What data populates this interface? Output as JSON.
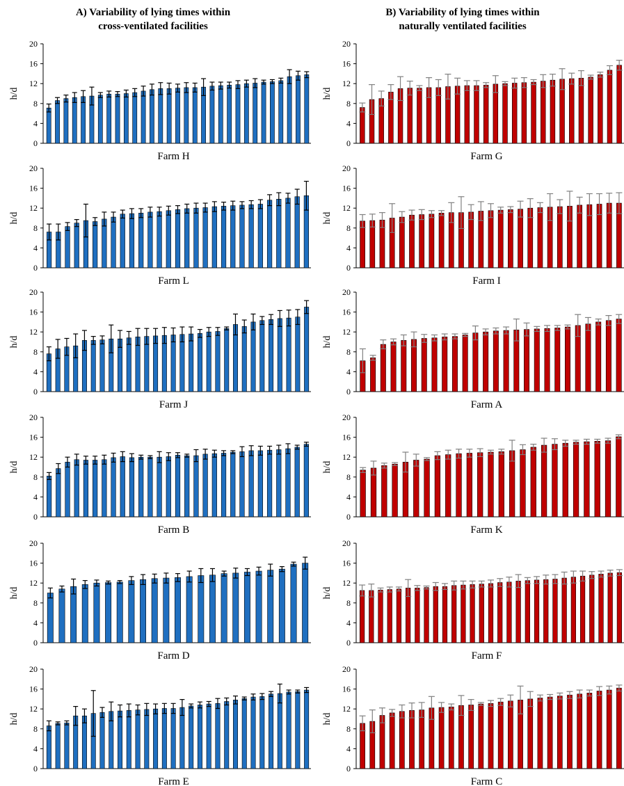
{
  "column_titles": {
    "left": {
      "line1": "A) Variability  of lying times within",
      "line2": "cross-ventilated facilities"
    },
    "right": {
      "line1": "B) Variability  of lying times within",
      "line2": "naturally ventilated facilities"
    }
  },
  "colors": {
    "cross": "#1f6fc0",
    "natural": "#c00000"
  },
  "chart_data": [
    {
      "type": "bar",
      "title": "",
      "xlabel": "Farm H",
      "ylabel": "h/d",
      "ylim": [
        0,
        20
      ],
      "yticks": [
        0,
        4,
        8,
        12,
        16,
        20
      ],
      "series": [
        {
          "name": "",
          "color": "#1f6fc0",
          "values": [
            7.1,
            8.6,
            9.0,
            9.2,
            9.4,
            9.5,
            9.7,
            9.9,
            9.9,
            10.0,
            10.2,
            10.5,
            10.8,
            11.0,
            11.0,
            11.1,
            11.2,
            11.2,
            11.3,
            11.5,
            11.6,
            11.7,
            11.8,
            12.0,
            12.1,
            12.3,
            12.4,
            12.6,
            13.4,
            13.6,
            13.8
          ],
          "errors": [
            0.8,
            0.6,
            0.7,
            1.0,
            1.2,
            1.8,
            0.5,
            0.6,
            0.5,
            0.7,
            0.8,
            1.0,
            1.1,
            1.2,
            1.1,
            0.8,
            1.0,
            0.9,
            1.7,
            0.8,
            0.7,
            0.6,
            0.8,
            0.7,
            0.9,
            0.4,
            0.4,
            0.5,
            1.4,
            0.9,
            0.6
          ]
        }
      ]
    },
    {
      "type": "bar",
      "title": "",
      "xlabel": "Farm L",
      "ylabel": "h/d",
      "ylim": [
        0,
        20
      ],
      "yticks": [
        0,
        4,
        8,
        12,
        16,
        20
      ],
      "series": [
        {
          "name": "",
          "color": "#1f6fc0",
          "values": [
            7.2,
            7.2,
            8.3,
            9.0,
            9.5,
            9.3,
            9.8,
            10.2,
            10.8,
            10.9,
            11.0,
            11.2,
            11.3,
            11.5,
            11.7,
            11.9,
            12.0,
            12.1,
            12.3,
            12.4,
            12.5,
            12.6,
            12.7,
            12.8,
            13.6,
            13.8,
            14.0,
            14.3,
            14.5
          ],
          "errors": [
            1.6,
            1.6,
            0.8,
            0.7,
            3.3,
            0.8,
            1.4,
            1.0,
            0.8,
            1.0,
            0.9,
            1.0,
            0.9,
            0.9,
            0.8,
            0.9,
            1.0,
            0.9,
            1.0,
            0.8,
            0.9,
            0.7,
            0.8,
            0.9,
            1.1,
            1.3,
            1.0,
            1.5,
            2.9
          ]
        }
      ]
    },
    {
      "type": "bar",
      "title": "",
      "xlabel": "Farm J",
      "ylabel": "h/d",
      "ylim": [
        0,
        20
      ],
      "yticks": [
        0,
        4,
        8,
        12,
        16,
        20
      ],
      "series": [
        {
          "name": "",
          "color": "#1f6fc0",
          "values": [
            7.6,
            8.6,
            9.0,
            9.2,
            10.3,
            10.3,
            10.4,
            10.6,
            10.6,
            10.8,
            11.0,
            11.1,
            11.2,
            11.3,
            11.4,
            11.5,
            11.6,
            11.7,
            12.0,
            12.1,
            12.7,
            13.5,
            13.1,
            14.0,
            14.3,
            14.5,
            14.7,
            14.8,
            15.0,
            17.0
          ],
          "errors": [
            1.4,
            1.9,
            1.7,
            2.4,
            2.0,
            0.8,
            0.8,
            2.8,
            1.7,
            1.3,
            1.7,
            1.6,
            1.5,
            1.6,
            1.4,
            1.5,
            1.4,
            0.8,
            0.9,
            0.8,
            0.3,
            2.1,
            1.3,
            1.6,
            0.8,
            1.0,
            1.6,
            1.6,
            1.5,
            1.3
          ]
        }
      ]
    },
    {
      "type": "bar",
      "title": "",
      "xlabel": "Farm B",
      "ylabel": "h/d",
      "ylim": [
        0,
        20
      ],
      "yticks": [
        0,
        4,
        8,
        12,
        16,
        20
      ],
      "series": [
        {
          "name": "",
          "color": "#1f6fc0",
          "values": [
            8.2,
            9.7,
            11.0,
            11.5,
            11.4,
            11.4,
            11.5,
            11.9,
            12.1,
            11.9,
            12.0,
            12.0,
            12.0,
            12.1,
            12.4,
            12.3,
            12.3,
            12.6,
            12.7,
            12.8,
            13.0,
            13.1,
            13.3,
            13.3,
            13.4,
            13.5,
            13.7,
            14.0,
            14.6
          ],
          "errors": [
            0.7,
            1.0,
            1.0,
            1.1,
            0.8,
            0.8,
            0.9,
            0.9,
            1.0,
            0.8,
            0.4,
            0.3,
            1.1,
            0.8,
            0.5,
            0.3,
            1.2,
            1.0,
            0.7,
            0.5,
            0.3,
            1.0,
            1.0,
            0.9,
            0.8,
            0.9,
            1.0,
            0.4,
            0.4
          ]
        }
      ]
    },
    {
      "type": "bar",
      "title": "",
      "xlabel": "Farm D",
      "ylabel": "h/d",
      "ylim": [
        0,
        20
      ],
      "yticks": [
        0,
        4,
        8,
        12,
        16,
        20
      ],
      "series": [
        {
          "name": "",
          "color": "#1f6fc0",
          "values": [
            10.0,
            10.8,
            11.3,
            11.7,
            12.0,
            12.1,
            12.2,
            12.5,
            12.7,
            12.9,
            13.0,
            13.1,
            13.3,
            13.5,
            13.6,
            13.9,
            14.0,
            14.2,
            14.4,
            14.6,
            14.8,
            15.8,
            16.0
          ],
          "errors": [
            1.0,
            0.6,
            1.5,
            0.8,
            0.6,
            0.3,
            0.3,
            0.8,
            1.0,
            0.9,
            1.0,
            0.8,
            1.1,
            1.4,
            1.3,
            0.5,
            1.0,
            0.7,
            0.8,
            1.2,
            0.5,
            0.4,
            1.2
          ]
        }
      ]
    },
    {
      "type": "bar",
      "title": "",
      "xlabel": "Farm E",
      "ylabel": "h/d",
      "ylim": [
        0,
        20
      ],
      "yticks": [
        0,
        4,
        8,
        12,
        16,
        20
      ],
      "series": [
        {
          "name": "",
          "color": "#1f6fc0",
          "values": [
            8.6,
            9.1,
            9.2,
            10.6,
            10.6,
            11.1,
            11.3,
            11.5,
            11.6,
            11.7,
            11.8,
            11.9,
            12.0,
            12.1,
            12.1,
            12.3,
            12.6,
            12.8,
            13.0,
            13.1,
            13.5,
            13.8,
            14.1,
            14.4,
            14.5,
            15.0,
            15.1,
            15.4,
            15.5,
            15.8
          ],
          "errors": [
            1.0,
            0.3,
            0.4,
            1.9,
            1.4,
            4.6,
            1.0,
            1.9,
            1.2,
            1.3,
            1.0,
            1.2,
            1.0,
            1.0,
            1.0,
            1.6,
            0.4,
            0.6,
            0.5,
            1.0,
            0.7,
            0.8,
            0.3,
            0.6,
            0.6,
            0.5,
            1.9,
            0.4,
            0.3,
            0.5
          ]
        }
      ]
    },
    {
      "type": "bar",
      "title": "",
      "xlabel": "Farm G",
      "ylabel": "h/d",
      "ylim": [
        0,
        20
      ],
      "yticks": [
        0,
        4,
        8,
        12,
        16,
        20
      ],
      "series": [
        {
          "name": "",
          "color": "#c00000",
          "values": [
            7.2,
            8.8,
            9.0,
            10.3,
            11.0,
            11.1,
            11.1,
            11.2,
            11.2,
            11.4,
            11.5,
            11.6,
            11.6,
            11.7,
            11.9,
            12.0,
            12.1,
            12.2,
            12.3,
            12.5,
            12.7,
            12.9,
            13.0,
            13.1,
            13.3,
            13.8,
            14.7,
            15.7
          ],
          "errors": [
            0.9,
            3.0,
            1.5,
            1.5,
            2.4,
            1.4,
            0.5,
            2.0,
            1.6,
            2.5,
            1.6,
            1.0,
            1.0,
            0.5,
            1.7,
            0.4,
            1.0,
            1.0,
            0.5,
            1.3,
            1.2,
            2.1,
            1.1,
            1.5,
            0.4,
            0.5,
            0.9,
            1.0
          ]
        }
      ]
    },
    {
      "type": "bar",
      "title": "",
      "xlabel": "Farm I",
      "ylabel": "h/d",
      "ylim": [
        0,
        20
      ],
      "yticks": [
        0,
        4,
        8,
        12,
        16,
        20
      ],
      "series": [
        {
          "name": "",
          "color": "#c00000",
          "values": [
            9.4,
            9.5,
            9.6,
            10.0,
            10.2,
            10.6,
            10.7,
            10.8,
            11.0,
            11.1,
            11.1,
            11.2,
            11.4,
            11.5,
            11.6,
            11.7,
            11.8,
            12.0,
            12.1,
            12.2,
            12.3,
            12.4,
            12.6,
            12.7,
            12.8,
            13.0,
            13.0
          ],
          "errors": [
            1.3,
            1.3,
            1.5,
            2.9,
            1.1,
            1.0,
            1.0,
            0.7,
            0.5,
            2.0,
            3.2,
            1.5,
            1.9,
            1.4,
            0.6,
            0.6,
            1.6,
            1.9,
            1.0,
            2.7,
            1.4,
            3.0,
            1.6,
            2.2,
            2.1,
            2.0,
            2.1
          ]
        }
      ]
    },
    {
      "type": "bar",
      "title": "",
      "xlabel": "Farm A",
      "ylabel": "h/d",
      "ylim": [
        0,
        20
      ],
      "yticks": [
        0,
        4,
        8,
        12,
        16,
        20
      ],
      "series": [
        {
          "name": "",
          "color": "#c00000",
          "values": [
            6.2,
            6.8,
            9.5,
            10.0,
            10.3,
            10.5,
            10.7,
            10.8,
            11.0,
            11.1,
            11.4,
            11.8,
            12.0,
            12.2,
            12.3,
            12.4,
            12.5,
            12.6,
            12.7,
            12.8,
            13.0,
            13.3,
            13.6,
            14.0,
            14.3,
            14.6
          ],
          "errors": [
            2.4,
            0.5,
            0.9,
            0.6,
            1.1,
            1.5,
            0.8,
            0.6,
            0.6,
            0.5,
            0.3,
            1.4,
            0.6,
            0.6,
            0.7,
            2.2,
            1.3,
            0.5,
            0.6,
            0.5,
            0.4,
            2.2,
            1.3,
            0.6,
            1.0,
            0.9
          ]
        }
      ]
    },
    {
      "type": "bar",
      "title": "",
      "xlabel": "Farm K",
      "ylabel": "h/d",
      "ylim": [
        0,
        20
      ],
      "yticks": [
        0,
        4,
        8,
        12,
        16,
        20
      ],
      "series": [
        {
          "name": "",
          "color": "#c00000",
          "values": [
            9.4,
            9.8,
            10.3,
            10.6,
            11.0,
            11.4,
            11.6,
            12.3,
            12.5,
            12.7,
            12.8,
            12.9,
            13.0,
            13.1,
            13.3,
            13.5,
            14.0,
            14.4,
            14.6,
            14.8,
            15.0,
            15.1,
            15.2,
            15.3,
            16.1
          ],
          "errors": [
            0.5,
            1.4,
            0.5,
            0.3,
            2.0,
            1.2,
            0.3,
            0.8,
            0.9,
            0.9,
            0.8,
            0.8,
            0.4,
            0.5,
            2.1,
            1.0,
            0.6,
            1.4,
            1.1,
            0.6,
            0.4,
            0.5,
            0.4,
            0.5,
            0.4
          ]
        }
      ]
    },
    {
      "type": "bar",
      "title": "",
      "xlabel": "Farm F",
      "ylabel": "h/d",
      "ylim": [
        0,
        20
      ],
      "yticks": [
        0,
        4,
        8,
        12,
        16,
        20
      ],
      "series": [
        {
          "name": "",
          "color": "#c00000",
          "values": [
            10.5,
            10.5,
            10.6,
            10.7,
            10.8,
            11.0,
            11.0,
            11.1,
            11.3,
            11.3,
            11.5,
            11.6,
            11.7,
            11.8,
            11.9,
            12.1,
            12.2,
            12.4,
            12.5,
            12.6,
            12.7,
            12.8,
            13.0,
            13.2,
            13.4,
            13.6,
            13.8,
            14.0,
            14.1
          ],
          "errors": [
            1.1,
            1.3,
            0.4,
            0.5,
            0.4,
            1.7,
            0.5,
            0.3,
            0.8,
            0.6,
            0.9,
            0.8,
            0.7,
            0.6,
            0.7,
            0.8,
            1.0,
            1.3,
            0.6,
            0.7,
            0.9,
            0.9,
            1.2,
            1.2,
            1.0,
            0.7,
            0.6,
            0.6,
            0.6
          ]
        }
      ]
    },
    {
      "type": "bar",
      "title": "",
      "xlabel": "Farm C",
      "ylabel": "h/d",
      "ylim": [
        0,
        20
      ],
      "yticks": [
        0,
        4,
        8,
        12,
        16,
        20
      ],
      "series": [
        {
          "name": "",
          "color": "#c00000",
          "values": [
            9.1,
            9.5,
            10.7,
            11.2,
            11.5,
            11.7,
            11.8,
            12.2,
            12.3,
            12.4,
            12.7,
            12.8,
            13.0,
            13.1,
            13.4,
            13.6,
            13.8,
            14.0,
            14.2,
            14.4,
            14.6,
            14.8,
            15.0,
            15.2,
            15.6,
            15.8,
            16.2
          ],
          "errors": [
            1.5,
            2.3,
            1.5,
            0.7,
            1.3,
            1.5,
            1.5,
            2.3,
            1.0,
            0.6,
            2.0,
            1.1,
            0.3,
            0.6,
            0.7,
            1.2,
            2.8,
            1.5,
            0.6,
            0.5,
            0.6,
            0.7,
            0.8,
            0.6,
            0.9,
            0.8,
            0.6
          ]
        }
      ]
    }
  ]
}
